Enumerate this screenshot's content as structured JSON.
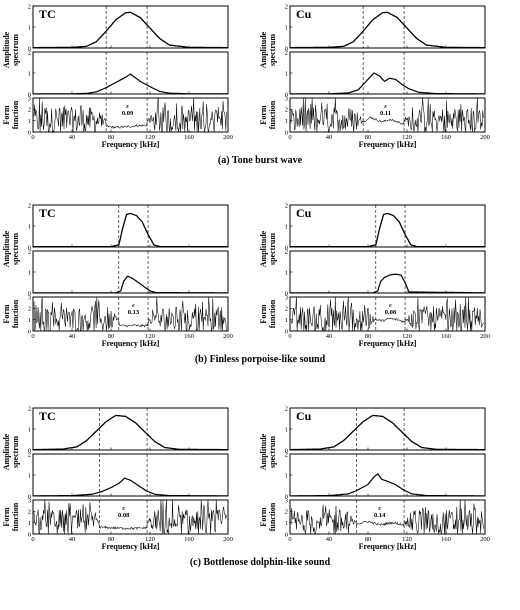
{
  "chart_data": [
    {
      "type": "line",
      "caption": "(a) Tone burst wave",
      "xlabel": "Frequency [kHz]",
      "xlim": [
        0,
        200
      ],
      "xticks": [
        0,
        40,
        80,
        120,
        160,
        200
      ],
      "xtick_labels": [
        "0",
        "40",
        "80",
        "120",
        "160",
        "200"
      ],
      "window_khz": [
        75,
        117
      ],
      "panels": [
        {
          "material": "TC",
          "epsilon_label": "ε",
          "epsilon_value": "0.09",
          "epsilon_freq_khz": 97,
          "amp_ylabel": [
            "Amplitude",
            "spectrum"
          ],
          "form_ylabel": [
            "Form",
            "function"
          ],
          "top_yticks": [
            "2",
            "1",
            "0"
          ],
          "mid_yticks": [
            "2",
            "1",
            "0"
          ],
          "form_yticks": [
            "3",
            "2",
            "1",
            "0"
          ],
          "incident_spectrum": {
            "x": [
              0,
              40,
              55,
              65,
              75,
              85,
              95,
              100,
              110,
              120,
              130,
              140,
              160,
              200
            ],
            "y": [
              0.02,
              0.03,
              0.08,
              0.3,
              0.8,
              1.35,
              1.68,
              1.7,
              1.45,
              0.95,
              0.45,
              0.14,
              0.03,
              0.02
            ]
          },
          "echo_spectrum": {
            "x": [
              0,
              40,
              55,
              65,
              75,
              85,
              95,
              100,
              110,
              120,
              130,
              140,
              160,
              200
            ],
            "y": [
              0.01,
              0.01,
              0.03,
              0.1,
              0.3,
              0.55,
              0.8,
              0.95,
              0.6,
              0.35,
              0.12,
              0.04,
              0.01,
              0.01
            ]
          },
          "form_function": {
            "x": [
              75,
              85,
              95,
              105,
              117
            ],
            "y": [
              0.5,
              0.4,
              0.45,
              0.55,
              0.6
            ]
          }
        },
        {
          "material": "Cu",
          "epsilon_label": "ε",
          "epsilon_value": "0.11",
          "epsilon_freq_khz": 98,
          "amp_ylabel": [
            "Amplitude",
            "spectrum"
          ],
          "form_ylabel": [
            "Form",
            "function"
          ],
          "top_yticks": [
            "2",
            "1",
            "0"
          ],
          "mid_yticks": [
            "2",
            "1",
            "0"
          ],
          "form_yticks": [
            "3",
            "2",
            "1",
            "0"
          ],
          "incident_spectrum": {
            "x": [
              0,
              40,
              55,
              65,
              75,
              85,
              95,
              100,
              110,
              120,
              130,
              140,
              160,
              200
            ],
            "y": [
              0.02,
              0.03,
              0.08,
              0.3,
              0.8,
              1.35,
              1.68,
              1.7,
              1.45,
              0.95,
              0.45,
              0.14,
              0.03,
              0.02
            ]
          },
          "echo_spectrum": {
            "x": [
              0,
              40,
              60,
              70,
              78,
              86,
              92,
              97,
              102,
              108,
              115,
              122,
              132,
              150,
              200
            ],
            "y": [
              0.01,
              0.01,
              0.05,
              0.2,
              0.6,
              1.0,
              0.85,
              0.6,
              0.75,
              0.7,
              0.45,
              0.25,
              0.08,
              0.02,
              0.01
            ]
          },
          "form_function": {
            "x": [
              75,
              83,
              88,
              95,
              102,
              110,
              117
            ],
            "y": [
              0.9,
              1.3,
              1.1,
              0.9,
              1.1,
              0.9,
              0.7
            ]
          }
        }
      ]
    },
    {
      "type": "line",
      "caption": "(b) Finless porpoise-like sound",
      "xlabel": "Frequency [kHz]",
      "xlim": [
        0,
        200
      ],
      "xticks": [
        0,
        40,
        80,
        120,
        160,
        200
      ],
      "xtick_labels": [
        "0",
        "40",
        "80",
        "120",
        "160",
        "200"
      ],
      "window_khz": [
        88,
        118
      ],
      "panels": [
        {
          "material": "TC",
          "epsilon_label": "ε",
          "epsilon_value": "0.13",
          "epsilon_freq_khz": 103,
          "amp_ylabel": [
            "Amplitude",
            "spectrum"
          ],
          "form_ylabel": [
            "Form",
            "function"
          ],
          "top_yticks": [
            "2",
            "1",
            "0"
          ],
          "mid_yticks": [
            "2",
            "1",
            "0"
          ],
          "form_yticks": [
            "3",
            "2",
            "1",
            "0"
          ],
          "incident_spectrum": {
            "x": [
              0,
              80,
              88,
              92,
              96,
              100,
              106,
              112,
              118,
              124,
              130,
              200
            ],
            "y": [
              0.02,
              0.02,
              0.1,
              0.9,
              1.55,
              1.6,
              1.5,
              1.2,
              0.6,
              0.1,
              0.02,
              0.02
            ]
          },
          "echo_spectrum": {
            "x": [
              0,
              85,
              90,
              93,
              97,
              102,
              108,
              114,
              120,
              126,
              200
            ],
            "y": [
              0.01,
              0.01,
              0.1,
              0.55,
              0.8,
              0.7,
              0.5,
              0.3,
              0.1,
              0.02,
              0.01
            ]
          },
          "form_function": {
            "x": [
              88,
              95,
              102,
              110,
              118
            ],
            "y": [
              0.5,
              0.45,
              0.5,
              0.45,
              0.5
            ]
          }
        },
        {
          "material": "Cu",
          "epsilon_label": "ε",
          "epsilon_value": "0.08",
          "epsilon_freq_khz": 103,
          "amp_ylabel": [
            "Amplitude",
            "spectrum"
          ],
          "form_ylabel": [
            "Form",
            "function"
          ],
          "top_yticks": [
            "2",
            "1",
            "0"
          ],
          "mid_yticks": [
            "2",
            "1",
            "0"
          ],
          "form_yticks": [
            "3",
            "2",
            "1",
            "0"
          ],
          "incident_spectrum": {
            "x": [
              0,
              80,
              88,
              92,
              96,
              100,
              106,
              112,
              118,
              124,
              130,
              200
            ],
            "y": [
              0.02,
              0.02,
              0.1,
              0.9,
              1.55,
              1.6,
              1.5,
              1.2,
              0.6,
              0.1,
              0.02,
              0.02
            ]
          },
          "echo_spectrum": {
            "x": [
              0,
              85,
              90,
              93,
              97,
              102,
              108,
              114,
              118,
              122,
              200
            ],
            "y": [
              0.01,
              0.01,
              0.1,
              0.55,
              0.75,
              0.85,
              0.9,
              0.85,
              0.5,
              0.05,
              0.01
            ]
          },
          "form_function": {
            "x": [
              88,
              95,
              102,
              110,
              118
            ],
            "y": [
              1.0,
              0.9,
              1.1,
              1.0,
              0.8
            ]
          }
        }
      ]
    },
    {
      "type": "line",
      "caption": "(c) Bottlenose dolphin-like sound",
      "xlabel": "Frequency [kHz]",
      "xlim": [
        0,
        200
      ],
      "xticks": [
        0,
        40,
        80,
        120,
        160,
        200
      ],
      "xtick_labels": [
        "0",
        "40",
        "80",
        "120",
        "160",
        "200"
      ],
      "window_khz": [
        68,
        117
      ],
      "panels": [
        {
          "material": "TC",
          "epsilon_label": "ε",
          "epsilon_value": "0.08",
          "epsilon_freq_khz": 93,
          "amp_ylabel": [
            "Amplitude",
            "spectrum"
          ],
          "form_ylabel": [
            "Form",
            "function"
          ],
          "top_yticks": [
            "2",
            "1",
            "0"
          ],
          "mid_yticks": [
            "2",
            "1",
            "0"
          ],
          "form_yticks": [
            "3",
            "2",
            "1",
            "0"
          ],
          "incident_spectrum": {
            "x": [
              0,
              30,
              45,
              55,
              65,
              75,
              85,
              95,
              105,
              115,
              125,
              135,
              150,
              200
            ],
            "y": [
              0.02,
              0.04,
              0.15,
              0.45,
              0.9,
              1.35,
              1.65,
              1.6,
              1.3,
              0.85,
              0.4,
              0.12,
              0.03,
              0.02
            ]
          },
          "echo_spectrum": {
            "x": [
              0,
              40,
              60,
              70,
              80,
              88,
              94,
              100,
              108,
              116,
              125,
              140,
              200
            ],
            "y": [
              0.01,
              0.02,
              0.08,
              0.2,
              0.4,
              0.6,
              0.85,
              0.75,
              0.5,
              0.25,
              0.08,
              0.02,
              0.01
            ]
          },
          "form_function": {
            "x": [
              68,
              80,
              93,
              105,
              117
            ],
            "y": [
              0.6,
              0.55,
              0.5,
              0.5,
              0.55
            ]
          }
        },
        {
          "material": "Cu",
          "epsilon_label": "ε",
          "epsilon_value": "0.14",
          "epsilon_freq_khz": 92,
          "amp_ylabel": [
            "Amplitude",
            "spectrum"
          ],
          "form_ylabel": [
            "Form",
            "function"
          ],
          "top_yticks": [
            "2",
            "1",
            "0"
          ],
          "mid_yticks": [
            "2",
            "1",
            "0"
          ],
          "form_yticks": [
            "3",
            "2",
            "1",
            "0"
          ],
          "incident_spectrum": {
            "x": [
              0,
              30,
              45,
              55,
              65,
              75,
              85,
              95,
              105,
              115,
              125,
              135,
              150,
              200
            ],
            "y": [
              0.02,
              0.04,
              0.15,
              0.45,
              0.9,
              1.35,
              1.65,
              1.6,
              1.3,
              0.85,
              0.4,
              0.12,
              0.03,
              0.02
            ]
          },
          "echo_spectrum": {
            "x": [
              0,
              40,
              60,
              70,
              80,
              86,
              90,
              94,
              100,
              108,
              116,
              125,
              140,
              200
            ],
            "y": [
              0.01,
              0.02,
              0.1,
              0.3,
              0.55,
              0.9,
              1.05,
              0.8,
              0.7,
              0.55,
              0.3,
              0.1,
              0.02,
              0.01
            ]
          },
          "form_function": {
            "x": [
              68,
              80,
              92,
              105,
              117
            ],
            "y": [
              0.9,
              1.1,
              0.8,
              1.0,
              0.8
            ]
          }
        }
      ]
    }
  ]
}
